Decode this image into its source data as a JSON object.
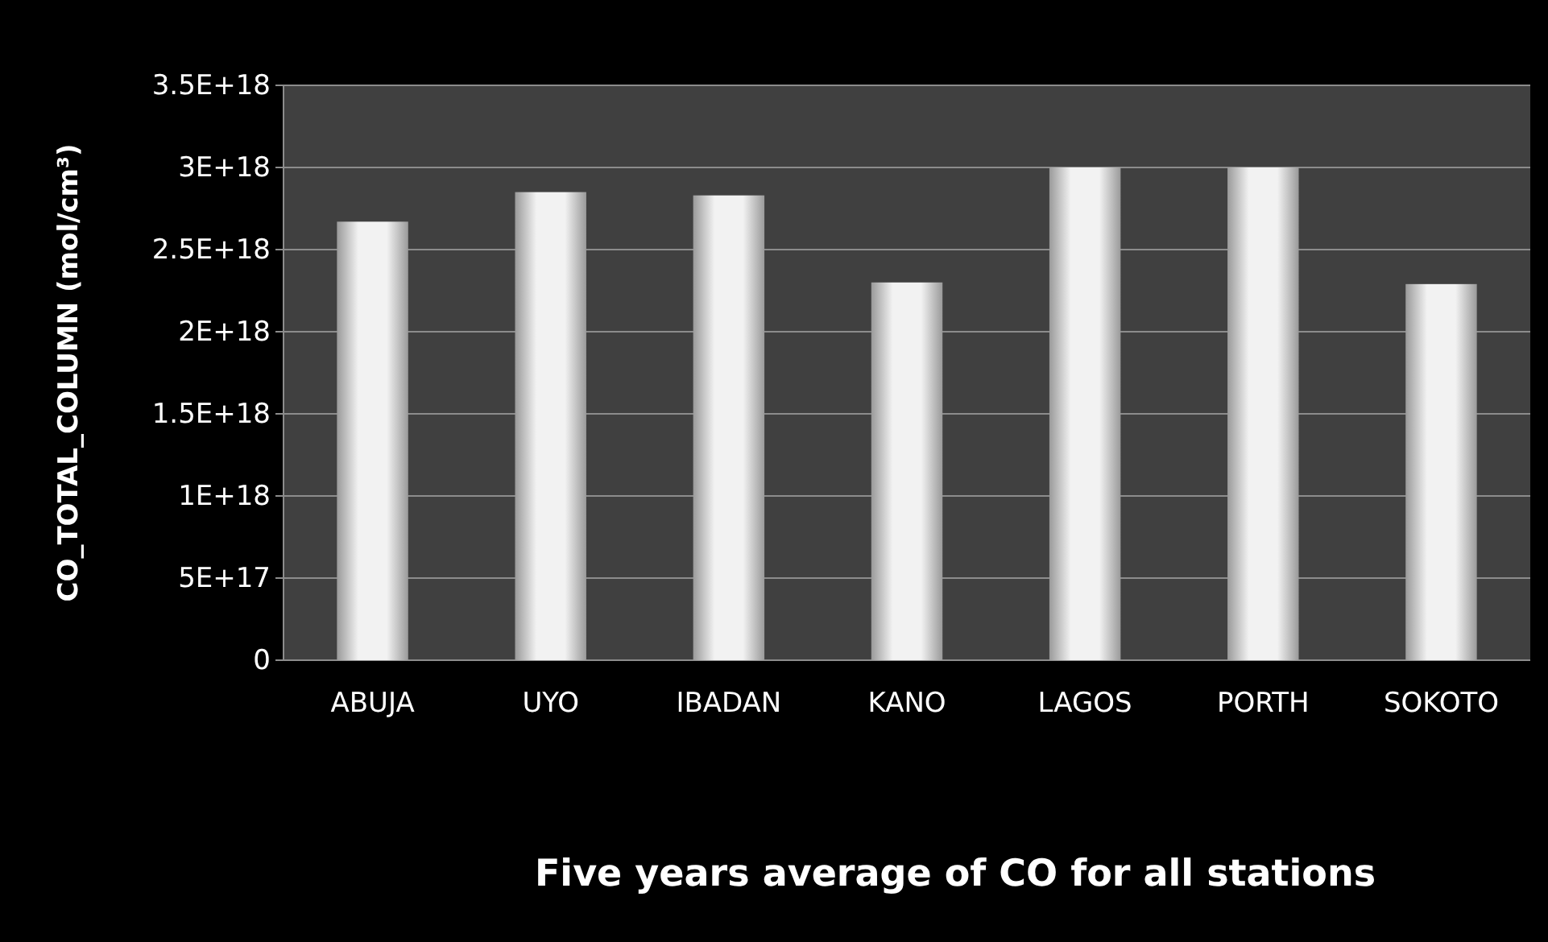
{
  "chart_data": {
    "type": "bar",
    "title": "Five years average of CO for all stations",
    "ylabel": "CO_TOTAL_COLUMN (mol/cm³)",
    "categories": [
      "ABUJA",
      "UYO",
      "IBADAN",
      "KANO",
      "LAGOS",
      "PORTH",
      "SOKOTO"
    ],
    "values": [
      2.67e+18,
      2.85e+18,
      2.83e+18,
      2.3e+18,
      3e+18,
      3e+18,
      2.29e+18
    ],
    "color": "#f2f2f2",
    "ylim": [
      0,
      3.5e+18
    ],
    "yticks": [
      0,
      {
        "value": 5e+17,
        "label": "5E+17"
      },
      {
        "value": 1e+18,
        "label": "1E+18"
      },
      {
        "value": 1.5e+18,
        "label": "1.5E+18"
      },
      {
        "value": 2e+18,
        "label": "2E+18"
      },
      {
        "value": 2.5e+18,
        "label": "2.5E+18"
      },
      {
        "value": 3e+18,
        "label": "3E+18"
      },
      {
        "value": 3.5e+18,
        "label": "3.5E+18"
      }
    ],
    "grid": "y"
  }
}
